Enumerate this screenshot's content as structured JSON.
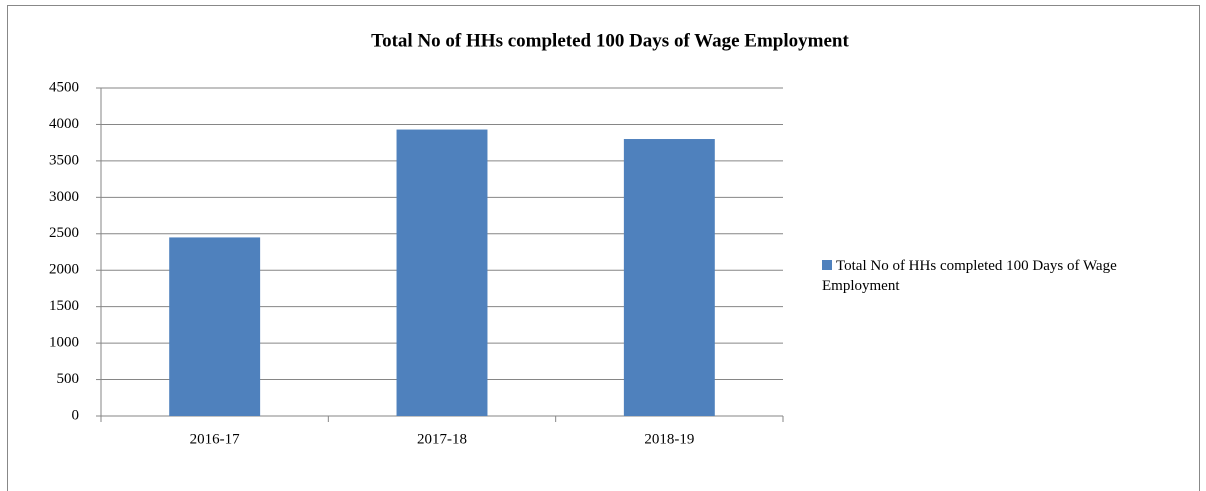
{
  "chart_data": {
    "type": "bar",
    "title": "Total No of HHs completed 100 Days of Wage Employment",
    "categories": [
      "2016-17",
      "2017-18",
      "2018-19"
    ],
    "series": [
      {
        "name": "Total No of HHs completed 100 Days of Wage Employment",
        "color": "#4f81bd",
        "values": [
          2450,
          3930,
          3800
        ]
      }
    ],
    "ylim": [
      0,
      4500
    ],
    "yticks": [
      0,
      500,
      1000,
      1500,
      2000,
      2500,
      3000,
      3500,
      4000,
      4500
    ],
    "grid": true,
    "legend": "right"
  }
}
